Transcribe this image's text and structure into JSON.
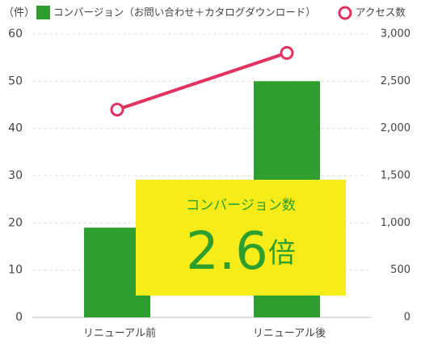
{
  "chart_data": {
    "type": "bar-line",
    "y_label": "（件）",
    "categories": [
      "リニューアル前",
      "リニューアル後"
    ],
    "series": [
      {
        "name": "コンバージョン（お問い合わせ＋カタログダウンロード）",
        "color": "#2e9e2e",
        "type": "bar",
        "values": [
          19,
          50
        ]
      },
      {
        "name": "アクセス数",
        "color": "#e0325f",
        "type": "line",
        "axis": "y2",
        "values": [
          2200,
          2800
        ]
      }
    ],
    "ylim": [
      0,
      60
    ],
    "yticks": [
      0,
      10,
      20,
      30,
      40,
      50,
      60
    ],
    "y2lim": [
      0,
      3000
    ],
    "y2ticks": [
      0,
      500,
      {
        "value": 1000,
        "label": "1,000"
      },
      {
        "value": 1500,
        "label": "1,500"
      },
      {
        "value": 2000,
        "label": "2,000"
      },
      {
        "value": 2500,
        "label": "2,500"
      },
      {
        "value": 3000,
        "label": "3,000"
      }
    ],
    "grid": true,
    "annotation": {
      "label": "コンバージョン数",
      "value": "2.6",
      "unit": "倍",
      "color": "#f5ec1a",
      "text_color": "#2e9e2e"
    }
  }
}
